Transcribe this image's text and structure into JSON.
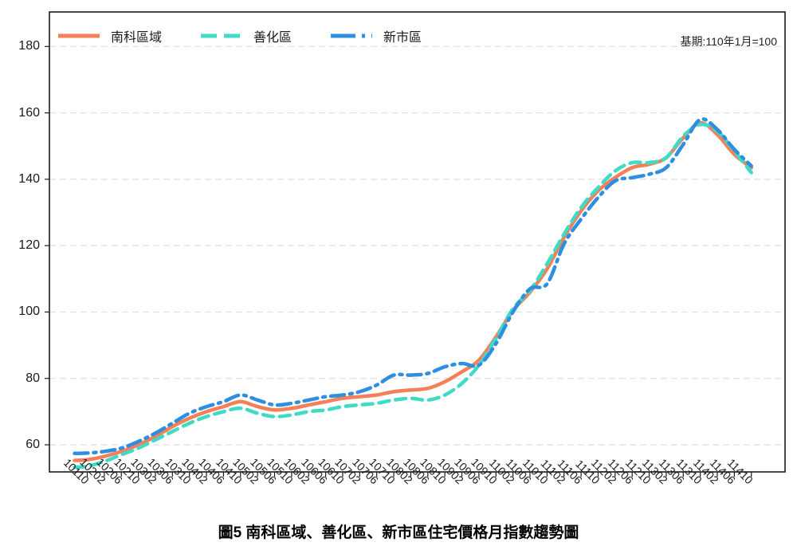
{
  "chart_data": {
    "type": "line",
    "title": "圖5 南科區域、善化區、新市區住宅價格月指數趨勢圖",
    "note": "基期:110年1月=100",
    "xlabel": "",
    "ylabel": "",
    "y_ticks": [
      60,
      80,
      100,
      120,
      140,
      160,
      180
    ],
    "ylim": [
      51.8,
      190.3
    ],
    "grid": "horizontal-dashed",
    "legend_position": "top-left-inside",
    "categories": [
      "10110",
      "10202",
      "10206",
      "10210",
      "10302",
      "10306",
      "10310",
      "10402",
      "10406",
      "10410",
      "10502",
      "10506",
      "10510",
      "10602",
      "10606",
      "10610",
      "10702",
      "10706",
      "10710",
      "10802",
      "10806",
      "10810",
      "10902",
      "10906",
      "10910",
      "11002",
      "11006",
      "11010",
      "11102",
      "11106",
      "11110",
      "11202",
      "11206",
      "11210",
      "11302",
      "11306",
      "11310",
      "11402",
      "11406",
      "11410"
    ],
    "series": [
      {
        "name": "南科區域",
        "color": "#F57F58",
        "style": "solid",
        "values": [
          55.5,
          56.5,
          58,
          60,
          62.5,
          65.5,
          68,
          70,
          71.5,
          73,
          71.5,
          70.5,
          71,
          72,
          73,
          74,
          74.5,
          75,
          76,
          76.5,
          77,
          79,
          82,
          85.5,
          92.5,
          100.5,
          106,
          113,
          122.5,
          130.5,
          136.5,
          140.5,
          143.5,
          144.5,
          146.5,
          152.5,
          157,
          153.5,
          147.5,
          143.5
        ]
      },
      {
        "name": "善化區",
        "color": "#3FDBC4",
        "style": "dashed",
        "values": [
          53.5,
          55,
          57,
          59,
          61.5,
          64,
          66.5,
          68.5,
          70,
          71,
          69.5,
          68.5,
          69,
          70,
          70.5,
          71.5,
          72,
          72.5,
          73.5,
          74,
          73.5,
          75,
          78.5,
          84,
          92,
          101,
          106.5,
          114.5,
          123.5,
          131.5,
          137.5,
          142.5,
          145,
          145,
          146.5,
          153,
          156.5,
          154.5,
          148.5,
          142
        ]
      },
      {
        "name": "新市區",
        "color": "#2E8FE0",
        "style": "dashdot",
        "values": [
          57.5,
          58,
          59,
          61,
          63.5,
          66.5,
          69.5,
          71.5,
          73,
          75,
          73.5,
          72,
          72.5,
          73.5,
          74.5,
          75,
          76,
          78,
          81,
          81,
          81.5,
          83.5,
          84.5,
          84,
          90.5,
          100,
          107,
          108.5,
          120.5,
          128,
          134.5,
          139.5,
          140.5,
          141.5,
          143.5,
          150.5,
          158,
          155,
          149,
          144
        ]
      }
    ],
    "lead_in": {
      "months_before_first_tick": 3,
      "values": [
        55.3,
        53.3,
        57.4
      ]
    }
  },
  "colors": {
    "grid": "#dbe1e6",
    "axis": "#1a1a1a",
    "background": "#ffffff"
  }
}
